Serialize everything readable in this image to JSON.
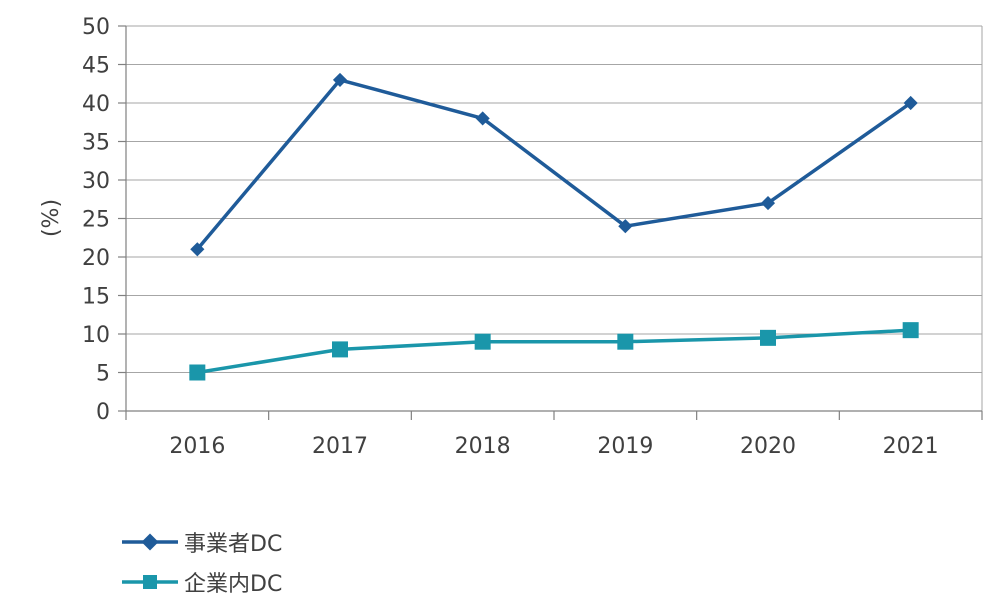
{
  "chart_data": {
    "type": "line",
    "categories": [
      "2016",
      "2017",
      "2018",
      "2019",
      "2020",
      "2021"
    ],
    "ylabel": "(%)",
    "ylim": [
      0,
      50
    ],
    "yticks": [
      0,
      5,
      10,
      15,
      20,
      25,
      30,
      35,
      40,
      45,
      50
    ],
    "grid": true,
    "legend_position": "bottom-left",
    "series": [
      {
        "name": "事業者DC",
        "values": [
          21,
          43,
          38,
          24,
          27,
          40
        ],
        "color": "#1f5b99",
        "marker": "diamond"
      },
      {
        "name": "企業内DC",
        "values": [
          5,
          8,
          9,
          9,
          9.5,
          10.5
        ],
        "color": "#1a96aa",
        "marker": "square"
      }
    ]
  }
}
